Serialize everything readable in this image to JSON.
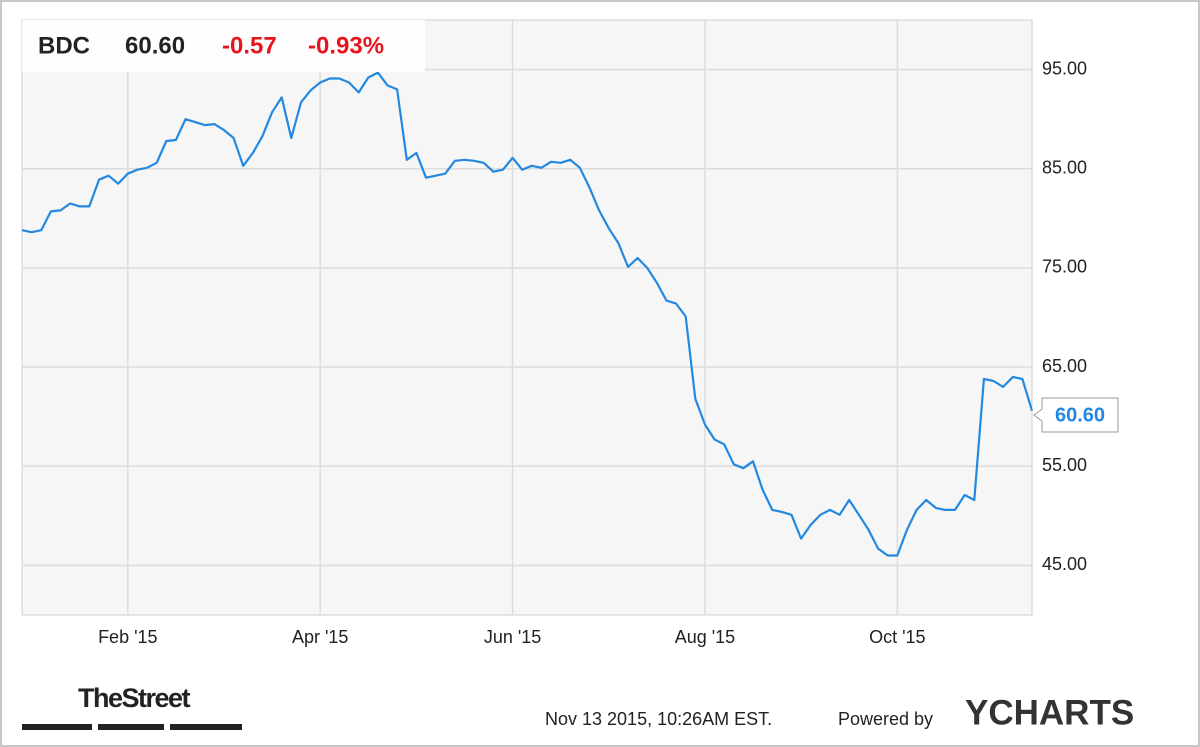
{
  "chart_data": {
    "type": "line",
    "ticker": "BDC",
    "price": "60.60",
    "change": "-0.57",
    "change_pct": "-0.93%",
    "categories": [
      null,
      null,
      null,
      null,
      null,
      null,
      null,
      null,
      null,
      null,
      null,
      "Feb '15",
      null,
      null,
      null,
      null,
      null,
      null,
      null,
      null,
      null,
      null,
      null,
      null,
      null,
      null,
      null,
      null,
      null,
      null,
      null,
      "Apr '15",
      null,
      null,
      null,
      null,
      null,
      null,
      null,
      null,
      null,
      null,
      null,
      null,
      null,
      null,
      null,
      null,
      null,
      null,
      null,
      "Jun '15",
      null,
      null,
      null,
      null,
      null,
      null,
      null,
      null,
      null,
      null,
      null,
      null,
      null,
      null,
      null,
      null,
      null,
      null,
      null,
      "Aug '15",
      null,
      null,
      null,
      null,
      null,
      null,
      null,
      null,
      null,
      null,
      null,
      null,
      null,
      null,
      null,
      null,
      null,
      null,
      null,
      "Oct '15",
      null,
      null,
      null,
      null,
      null,
      null,
      null,
      null,
      null,
      null,
      null,
      null,
      null,
      null
    ],
    "series": [
      {
        "name": "BDC",
        "color": "#2389e0",
        "values": [
          78.8,
          78.6,
          78.8,
          80.7,
          80.8,
          81.5,
          81.2,
          81.2,
          83.9,
          84.3,
          83.5,
          84.5,
          84.9,
          85.1,
          85.6,
          87.8,
          87.9,
          90.0,
          89.7,
          89.4,
          89.5,
          88.9,
          88.1,
          85.3,
          86.6,
          88.3,
          90.7,
          92.2,
          88.1,
          91.7,
          92.9,
          93.7,
          94.1,
          94.1,
          93.7,
          92.7,
          94.2,
          94.7,
          93.4,
          93.0,
          85.9,
          86.6,
          84.1,
          84.3,
          84.5,
          85.8,
          85.9,
          85.8,
          85.6,
          84.7,
          84.9,
          86.1,
          84.9,
          85.3,
          85.1,
          85.7,
          85.6,
          85.9,
          85.1,
          83.1,
          80.8,
          79.0,
          77.5,
          75.1,
          76.0,
          75.0,
          73.5,
          71.7,
          71.4,
          70.1,
          61.8,
          59.2,
          57.7,
          57.2,
          55.2,
          54.8,
          55.5,
          52.6,
          50.6,
          50.4,
          50.1,
          47.7,
          49.1,
          50.1,
          50.6,
          50.1,
          51.6,
          50.1,
          48.6,
          46.7,
          46.0,
          46.0,
          48.6,
          50.6,
          51.6,
          50.8,
          50.6,
          50.6,
          52.1,
          51.6,
          63.8,
          63.6,
          63.0,
          64.0,
          63.8,
          60.6
        ]
      }
    ],
    "ylim": [
      40,
      100
    ],
    "yticks": [
      {
        "value": 45,
        "label": "45.00"
      },
      {
        "value": 55,
        "label": "55.00"
      },
      {
        "value": 65,
        "label": "65.00"
      },
      {
        "value": 75,
        "label": "75.00"
      },
      {
        "value": 85,
        "label": "85.00"
      },
      {
        "value": 95,
        "label": "95.00"
      }
    ],
    "grid": true
  },
  "footer": {
    "brand": "TheStreet",
    "timestamp": "Nov 13 2015, 10:26AM EST.",
    "powered": "Powered by",
    "logo": "YCHARTS"
  }
}
